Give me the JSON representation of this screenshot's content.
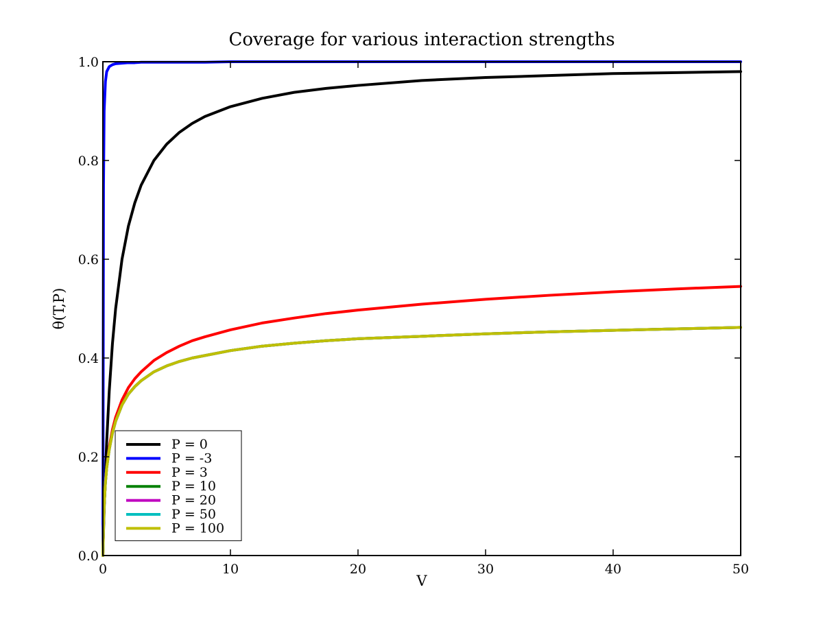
{
  "chart_data": {
    "type": "line",
    "title": "Coverage for various interaction strengths",
    "xlabel": "V",
    "ylabel": "θ(T,P)",
    "xlim": [
      0,
      50
    ],
    "ylim": [
      0.0,
      1.0
    ],
    "x_ticks": [
      "0",
      "10",
      "20",
      "30",
      "40",
      "50"
    ],
    "y_ticks": [
      "0.0",
      "0.2",
      "0.4",
      "0.6",
      "0.8",
      "1.0"
    ],
    "grid": false,
    "legend_position": "lower-left",
    "x": [
      0.0,
      0.05,
      0.1,
      0.2,
      0.3,
      0.5,
      0.75,
      1.0,
      1.5,
      2.0,
      2.5,
      3.0,
      4.0,
      5.0,
      6.0,
      7.0,
      8.0,
      10.0,
      12.5,
      15.0,
      17.5,
      20.0,
      25.0,
      30.0,
      35.0,
      40.0,
      45.0,
      50.0
    ],
    "series": [
      {
        "name": "P = 0",
        "color": "#000000",
        "values": [
          0.0,
          0.048,
          0.091,
          0.167,
          0.231,
          0.333,
          0.429,
          0.5,
          0.6,
          0.667,
          0.714,
          0.75,
          0.8,
          0.833,
          0.857,
          0.875,
          0.889,
          0.909,
          0.926,
          0.938,
          0.946,
          0.952,
          0.962,
          0.968,
          0.972,
          0.976,
          0.978,
          0.98
        ]
      },
      {
        "name": "P = -3",
        "color": "#0000ff",
        "values": [
          0.0,
          0.75,
          0.9,
          0.96,
          0.98,
          0.99,
          0.994,
          0.996,
          0.997,
          0.998,
          0.998,
          0.999,
          0.999,
          0.999,
          0.999,
          0.999,
          0.999,
          1.0,
          1.0,
          1.0,
          1.0,
          1.0,
          1.0,
          1.0,
          1.0,
          1.0,
          1.0,
          1.0
        ]
      },
      {
        "name": "P = 3",
        "color": "#ff0000",
        "values": [
          0.0,
          0.06,
          0.1,
          0.15,
          0.18,
          0.22,
          0.255,
          0.28,
          0.315,
          0.34,
          0.358,
          0.372,
          0.395,
          0.411,
          0.424,
          0.435,
          0.443,
          0.457,
          0.471,
          0.481,
          0.49,
          0.497,
          0.509,
          0.519,
          0.527,
          0.534,
          0.54,
          0.545
        ]
      },
      {
        "name": "P = 10",
        "color": "#008000",
        "values": [
          0.0,
          0.06,
          0.1,
          0.148,
          0.178,
          0.215,
          0.248,
          0.272,
          0.305,
          0.327,
          0.342,
          0.354,
          0.372,
          0.384,
          0.393,
          0.4,
          0.405,
          0.415,
          0.424,
          0.43,
          0.435,
          0.439,
          0.444,
          0.449,
          0.453,
          0.456,
          0.459,
          0.462
        ]
      },
      {
        "name": "P = 20",
        "color": "#bf00bf",
        "values": [
          0.0,
          0.06,
          0.1,
          0.148,
          0.178,
          0.215,
          0.248,
          0.272,
          0.305,
          0.327,
          0.342,
          0.354,
          0.372,
          0.384,
          0.393,
          0.4,
          0.405,
          0.415,
          0.424,
          0.43,
          0.435,
          0.439,
          0.444,
          0.449,
          0.453,
          0.456,
          0.459,
          0.462
        ]
      },
      {
        "name": "P = 50",
        "color": "#00bfbf",
        "values": [
          0.0,
          0.06,
          0.1,
          0.148,
          0.178,
          0.215,
          0.248,
          0.272,
          0.305,
          0.327,
          0.342,
          0.354,
          0.372,
          0.384,
          0.393,
          0.4,
          0.405,
          0.415,
          0.424,
          0.43,
          0.435,
          0.439,
          0.444,
          0.449,
          0.453,
          0.456,
          0.459,
          0.462
        ]
      },
      {
        "name": "P = 100",
        "color": "#bfbf00",
        "values": [
          0.0,
          0.06,
          0.1,
          0.148,
          0.178,
          0.215,
          0.248,
          0.272,
          0.305,
          0.327,
          0.342,
          0.354,
          0.372,
          0.384,
          0.393,
          0.4,
          0.405,
          0.415,
          0.424,
          0.43,
          0.435,
          0.439,
          0.444,
          0.449,
          0.453,
          0.456,
          0.459,
          0.462
        ]
      }
    ]
  }
}
